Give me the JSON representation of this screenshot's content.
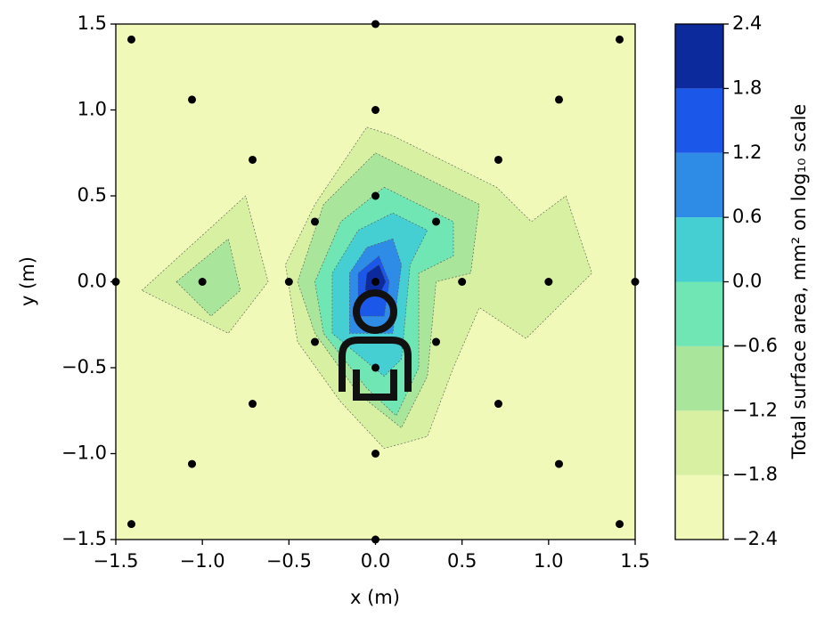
{
  "chart_data": {
    "type": "contour",
    "xlabel": "x (m)",
    "ylabel": "y (m)",
    "colorbar_label": "Total surface area, mm² on log₁₀ scale",
    "xlim": [
      -1.5,
      1.5
    ],
    "ylim": [
      -1.5,
      1.5
    ],
    "xticks": [
      {
        "value": -1.5,
        "label": "−1.5"
      },
      {
        "value": -1.0,
        "label": "−1.0"
      },
      {
        "value": -0.5,
        "label": "−0.5"
      },
      {
        "value": 0,
        "label": "0.0"
      },
      0.5,
      {
        "value": 1,
        "label": "1.0"
      },
      1.5
    ],
    "yticks": [
      {
        "value": -1.5,
        "label": "−1.5"
      },
      {
        "value": -1.0,
        "label": "−1.0"
      },
      {
        "value": -0.5,
        "label": "−0.5"
      },
      {
        "value": 0,
        "label": "0.0"
      },
      0.5,
      {
        "value": 1,
        "label": "1.0"
      },
      1.5
    ],
    "levels": [
      -2.4,
      -1.8,
      -1.2,
      -0.6,
      0,
      0.6,
      1.2,
      1.8,
      2.4
    ],
    "colors": [
      "#f1f9b9",
      "#d7f0a2",
      "#a9e59b",
      "#6fe6b4",
      "#46cfd3",
      "#2e8ce6",
      "#1b57e8",
      "#0c2a9c"
    ],
    "cbar_ticks": [
      {
        "value": -2.4,
        "label": "−2.4"
      },
      {
        "value": -1.8,
        "label": "−1.8"
      },
      {
        "value": -1.2,
        "label": "−1.2"
      },
      {
        "value": -0.6,
        "label": "−0.6"
      },
      {
        "value": 0,
        "label": "0.0"
      },
      0.6,
      1.2,
      1.8,
      2.4
    ],
    "regions": [
      {
        "level": -1.8,
        "points": [
          [
            -0.05,
            0.9
          ],
          [
            0.1,
            0.85
          ],
          [
            0.7,
            0.55
          ],
          [
            0.9,
            0.35
          ],
          [
            1.1,
            0.5
          ],
          [
            1.25,
            0.05
          ],
          [
            0.87,
            -0.33
          ],
          [
            0.6,
            -0.15
          ],
          [
            0.45,
            -0.5
          ],
          [
            0.3,
            -0.9
          ],
          [
            0.05,
            -0.97
          ],
          [
            -0.2,
            -0.7
          ],
          [
            -0.45,
            -0.35
          ],
          [
            -0.52,
            0.1
          ],
          [
            -0.35,
            0.45
          ]
        ]
      },
      {
        "level": -1.8,
        "points": [
          [
            -1.35,
            -0.05
          ],
          [
            -0.75,
            0.5
          ],
          [
            -0.62,
            0
          ],
          [
            -0.85,
            -0.3
          ]
        ]
      },
      {
        "level": -1.2,
        "points": [
          [
            0,
            0.75
          ],
          [
            0.6,
            0.45
          ],
          [
            0.55,
            0.05
          ],
          [
            0.35,
            0
          ],
          [
            0.3,
            -0.55
          ],
          [
            0.15,
            -0.85
          ],
          [
            -0.1,
            -0.65
          ],
          [
            -0.35,
            -0.3
          ],
          [
            -0.45,
            0
          ],
          [
            -0.3,
            0.45
          ]
        ]
      },
      {
        "level": -1.2,
        "points": [
          [
            -1.15,
            0
          ],
          [
            -0.85,
            0.25
          ],
          [
            -0.78,
            -0.05
          ],
          [
            -0.95,
            -0.2
          ]
        ]
      },
      {
        "level": -0.6,
        "points": [
          [
            0.05,
            0.55
          ],
          [
            0.45,
            0.35
          ],
          [
            0.45,
            0.15
          ],
          [
            0.25,
            0.05
          ],
          [
            0.25,
            -0.5
          ],
          [
            0.12,
            -0.78
          ],
          [
            -0.05,
            -0.62
          ],
          [
            -0.3,
            -0.3
          ],
          [
            -0.35,
            0
          ],
          [
            -0.2,
            0.35
          ]
        ]
      },
      {
        "level": 0,
        "points": [
          [
            0.1,
            0.4
          ],
          [
            0.3,
            0.3
          ],
          [
            0.2,
            0.1
          ],
          [
            0.15,
            -0.45
          ],
          [
            0.05,
            -0.55
          ],
          [
            -0.25,
            -0.3
          ],
          [
            -0.25,
            0.05
          ],
          [
            -0.1,
            0.3
          ]
        ]
      },
      {
        "level": 0.6,
        "points": [
          [
            0.1,
            0.25
          ],
          [
            0.15,
            0.1
          ],
          [
            0.1,
            -0.3
          ],
          [
            -0.15,
            -0.3
          ],
          [
            -0.15,
            0.05
          ],
          [
            -0.05,
            0.2
          ]
        ]
      },
      {
        "level": 1.2,
        "points": [
          [
            0.02,
            0.15
          ],
          [
            0.08,
            0
          ],
          [
            0.05,
            -0.2
          ],
          [
            -0.1,
            -0.2
          ],
          [
            -0.1,
            0.05
          ]
        ]
      },
      {
        "level": 1.8,
        "points": [
          [
            0.02,
            0.1
          ],
          [
            0.06,
            0
          ],
          [
            0.02,
            -0.08
          ],
          [
            -0.06,
            -0.05
          ],
          [
            -0.05,
            0.05
          ]
        ]
      }
    ],
    "points": {
      "x": [
        -1.41,
        0,
        1.41,
        -1.06,
        0,
        1.06,
        -0.71,
        0.71,
        0,
        -0.35,
        0.35,
        -1.5,
        -1,
        -0.5,
        0,
        0.5,
        1,
        1.5,
        -0.35,
        0.35,
        0,
        -0.71,
        0.71,
        0,
        -1.06,
        1.06,
        -1.41,
        0,
        1.41
      ],
      "y": [
        1.41,
        1.5,
        1.41,
        1.06,
        1,
        1.06,
        0.71,
        0.71,
        0.5,
        0.35,
        0.35,
        0,
        0,
        0,
        0,
        0,
        0,
        0,
        -0.35,
        -0.35,
        -0.5,
        -0.71,
        -0.71,
        -1,
        -1.06,
        -1.06,
        -1.41,
        -1.5,
        -1.41
      ]
    }
  }
}
